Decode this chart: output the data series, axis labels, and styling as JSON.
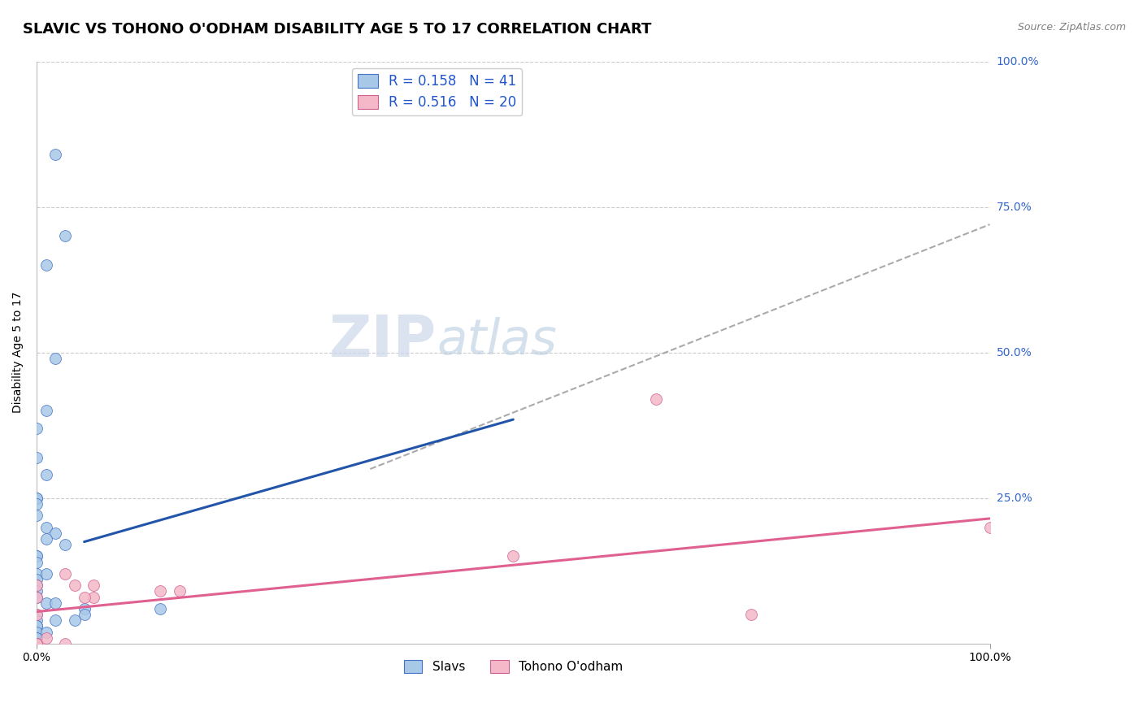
{
  "title": "SLAVIC VS TOHONO O'ODHAM DISABILITY AGE 5 TO 17 CORRELATION CHART",
  "source": "Source: ZipAtlas.com",
  "ylabel": "Disability Age 5 to 17",
  "xlim": [
    0,
    1.0
  ],
  "ylim": [
    0,
    1.0
  ],
  "slavs_color": "#a8c8e8",
  "slavs_edge_color": "#4472c4",
  "tohono_color": "#f4b8c8",
  "tohono_edge_color": "#d06090",
  "slavs_line_color": "#2255aa",
  "tohono_line_color": "#e06090",
  "dashed_line_color": "#aaaaaa",
  "R_slavs": 0.158,
  "N_slavs": 41,
  "R_tohono": 0.516,
  "N_tohono": 20,
  "slavs_scatter_x": [
    0.02,
    0.03,
    0.01,
    0.02,
    0.01,
    0.0,
    0.0,
    0.01,
    0.0,
    0.0,
    0.0,
    0.01,
    0.02,
    0.01,
    0.03,
    0.0,
    0.0,
    0.0,
    0.0,
    0.01,
    0.0,
    0.0,
    0.0,
    0.0,
    0.01,
    0.02,
    0.05,
    0.13,
    0.05,
    0.0,
    0.0,
    0.04,
    0.02,
    0.0,
    0.0,
    0.0,
    0.01,
    0.0,
    0.0,
    0.0,
    0.0
  ],
  "slavs_scatter_y": [
    0.84,
    0.7,
    0.65,
    0.49,
    0.4,
    0.37,
    0.32,
    0.29,
    0.25,
    0.25,
    0.24,
    0.2,
    0.19,
    0.18,
    0.17,
    0.15,
    0.15,
    0.14,
    0.12,
    0.12,
    0.11,
    0.1,
    0.09,
    0.08,
    0.07,
    0.07,
    0.06,
    0.06,
    0.05,
    0.05,
    0.04,
    0.04,
    0.04,
    0.03,
    0.03,
    0.02,
    0.02,
    0.01,
    0.01,
    0.0,
    0.22
  ],
  "tohono_scatter_x": [
    0.03,
    0.06,
    0.04,
    0.0,
    0.13,
    0.15,
    0.06,
    0.05,
    0.5,
    0.65,
    0.0,
    0.0,
    0.75,
    1.0,
    0.03,
    0.01,
    0.0,
    0.0,
    0.0,
    0.0
  ],
  "tohono_scatter_y": [
    0.12,
    0.1,
    0.1,
    0.1,
    0.09,
    0.09,
    0.08,
    0.08,
    0.15,
    0.42,
    0.08,
    0.05,
    0.05,
    0.2,
    0.0,
    0.01,
    0.0,
    0.0,
    0.0,
    0.0
  ],
  "slavs_line_x0": 0.05,
  "slavs_line_x1": 0.5,
  "slavs_line_y0": 0.175,
  "slavs_line_y1": 0.385,
  "dashed_line_x0": 0.35,
  "dashed_line_x1": 1.0,
  "dashed_line_y0": 0.3,
  "dashed_line_y1": 0.72,
  "tohono_line_x0": 0.0,
  "tohono_line_x1": 1.0,
  "tohono_line_y0": 0.055,
  "tohono_line_y1": 0.215,
  "background_color": "#ffffff",
  "grid_color": "#cccccc",
  "title_fontsize": 13,
  "label_fontsize": 10,
  "tick_fontsize": 10,
  "legend_label_slavs": "Slavs",
  "legend_label_tohono": "Tohono O'odham",
  "right_labels": [
    [
      "25.0%",
      0.25
    ],
    [
      "50.0%",
      0.5
    ],
    [
      "75.0%",
      0.75
    ],
    [
      "100.0%",
      1.0
    ]
  ],
  "watermark": "ZIPatlas",
  "watermark_zip_color": "#c0d0e8",
  "watermark_atlas_color": "#c8d8e8"
}
